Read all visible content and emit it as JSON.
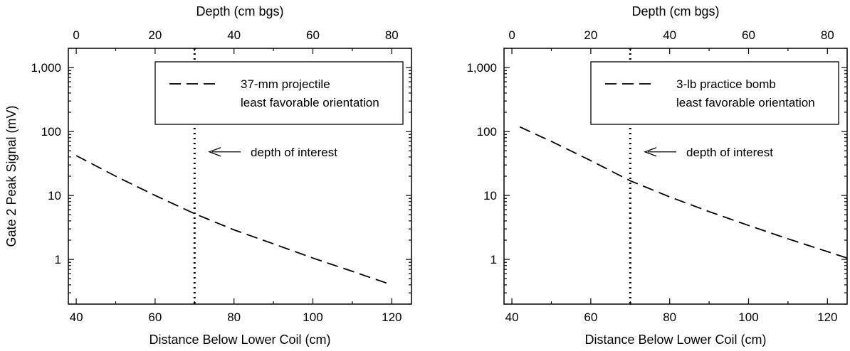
{
  "chart_data": [
    {
      "type": "line",
      "title": "",
      "xlabel": "Distance Below Lower Coil (cm)",
      "x2label": "Depth (cm bgs)",
      "ylabel": "Gate 2 Peak Signal (mV)",
      "xlim": [
        38,
        125
      ],
      "x2lim": [
        -2,
        85
      ],
      "ylim": [
        0.2,
        2000
      ],
      "yscale": "log",
      "x_ticks": [
        40,
        60,
        80,
        100,
        120
      ],
      "x2_ticks": [
        0,
        20,
        40,
        60,
        80
      ],
      "y_ticks": [
        1,
        10,
        100,
        1000
      ],
      "y_tick_labels": [
        "1",
        "10",
        "100",
        "1,000"
      ],
      "grid": false,
      "legend_position": "top-right",
      "legend": [
        "37-mm projectile",
        "least favorable orientation"
      ],
      "series": [
        {
          "name": "37-mm projectile least favorable orientation",
          "style": "dashed",
          "x": [
            40,
            50,
            60,
            70,
            80,
            90,
            100,
            110,
            119
          ],
          "y": [
            42,
            20,
            10,
            5.2,
            2.9,
            1.75,
            1.05,
            0.65,
            0.42
          ]
        }
      ],
      "reference_line": {
        "x": 70,
        "style": "dotted"
      },
      "annotation": {
        "text": "depth of interest",
        "x": 80,
        "y": 48
      }
    },
    {
      "type": "line",
      "title": "",
      "xlabel": "Distance Below Lower Coil (cm)",
      "x2label": "Depth (cm bgs)",
      "ylabel": "",
      "xlim": [
        38,
        125
      ],
      "x2lim": [
        -2,
        85
      ],
      "ylim": [
        0.2,
        2000
      ],
      "yscale": "log",
      "x_ticks": [
        40,
        60,
        80,
        100,
        120
      ],
      "x2_ticks": [
        0,
        20,
        40,
        60,
        80
      ],
      "y_ticks": [
        1,
        10,
        100,
        1000
      ],
      "y_tick_labels": [
        "1",
        "10",
        "100",
        "1,000"
      ],
      "grid": false,
      "legend_position": "top-right",
      "legend": [
        "3-lb practice bomb",
        "least favorable orientation"
      ],
      "series": [
        {
          "name": "3-lb practice bomb least favorable orientation",
          "style": "dashed",
          "x": [
            42,
            50,
            60,
            70,
            80,
            90,
            100,
            110,
            125
          ],
          "y": [
            118,
            70,
            35,
            17,
            9.5,
            5.6,
            3.4,
            2.1,
            1.05
          ]
        }
      ],
      "reference_line": {
        "x": 70,
        "style": "dotted"
      },
      "annotation": {
        "text": "depth of interest",
        "x": 80,
        "y": 48
      }
    }
  ]
}
